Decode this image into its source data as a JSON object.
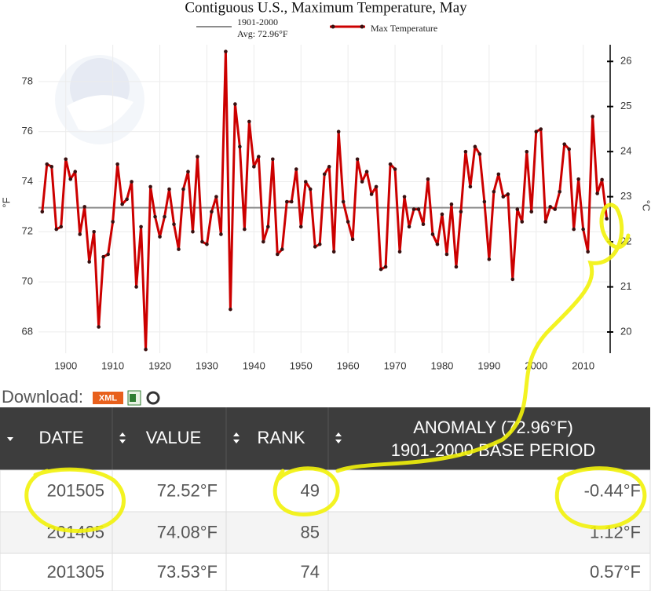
{
  "chart_data": {
    "type": "line",
    "title": "Contiguous U.S., Maximum Temperature, May",
    "ylabel": "°F",
    "y2label": "°C",
    "average": 72.96,
    "average_color": "#8c8c8c",
    "average_label": [
      "1901-2000",
      "Avg: 72.96°F"
    ],
    "x": [
      1895,
      1896,
      1897,
      1898,
      1899,
      1900,
      1901,
      1902,
      1903,
      1904,
      1905,
      1906,
      1907,
      1908,
      1909,
      1910,
      1911,
      1912,
      1913,
      1914,
      1915,
      1916,
      1917,
      1918,
      1919,
      1920,
      1921,
      1922,
      1923,
      1924,
      1925,
      1926,
      1927,
      1928,
      1929,
      1930,
      1931,
      1932,
      1933,
      1934,
      1935,
      1936,
      1937,
      1938,
      1939,
      1940,
      1941,
      1942,
      1943,
      1944,
      1945,
      1946,
      1947,
      1948,
      1949,
      1950,
      1951,
      1952,
      1953,
      1954,
      1955,
      1956,
      1957,
      1958,
      1959,
      1960,
      1961,
      1962,
      1963,
      1964,
      1965,
      1966,
      1967,
      1968,
      1969,
      1970,
      1971,
      1972,
      1973,
      1974,
      1975,
      1976,
      1977,
      1978,
      1979,
      1980,
      1981,
      1982,
      1983,
      1984,
      1985,
      1986,
      1987,
      1988,
      1989,
      1990,
      1991,
      1992,
      1993,
      1994,
      1995,
      1996,
      1997,
      1998,
      1999,
      2000,
      2001,
      2002,
      2003,
      2004,
      2005,
      2006,
      2007,
      2008,
      2009,
      2010,
      2011,
      2012,
      2013,
      2014,
      2015
    ],
    "series": [
      {
        "name": "Max Temperature",
        "color": "#cc0000",
        "values": [
          72.8,
          74.7,
          74.6,
          72.1,
          72.2,
          74.9,
          74.1,
          74.4,
          71.9,
          73.0,
          70.8,
          72.0,
          68.2,
          71.0,
          71.1,
          72.4,
          74.7,
          73.1,
          73.3,
          74.0,
          69.8,
          72.2,
          67.3,
          73.8,
          72.6,
          71.8,
          72.6,
          73.7,
          72.3,
          71.3,
          73.7,
          74.4,
          72.0,
          75.0,
          71.6,
          71.5,
          72.8,
          73.4,
          71.9,
          79.2,
          68.9,
          77.1,
          75.4,
          72.1,
          76.4,
          74.6,
          75.0,
          71.6,
          72.2,
          74.9,
          71.1,
          71.3,
          73.2,
          73.2,
          74.5,
          72.2,
          74.0,
          73.7,
          71.4,
          71.5,
          74.3,
          74.6,
          71.2,
          76.0,
          73.2,
          72.4,
          71.7,
          74.9,
          74.0,
          74.4,
          73.5,
          73.8,
          70.5,
          70.6,
          74.7,
          74.5,
          71.2,
          73.4,
          72.2,
          72.9,
          72.9,
          72.3,
          74.1,
          71.9,
          71.5,
          72.7,
          71.1,
          73.1,
          70.6,
          72.8,
          75.2,
          73.8,
          75.4,
          75.1,
          73.2,
          70.9,
          73.6,
          74.3,
          73.4,
          73.5,
          70.1,
          72.9,
          72.4,
          75.2,
          72.8,
          76.0,
          76.1,
          72.4,
          73.0,
          72.9,
          73.6,
          75.5,
          75.3,
          72.1,
          74.1,
          72.1,
          71.2,
          76.6,
          73.53,
          74.08,
          72.52
        ]
      }
    ],
    "xlim": [
      1894.2,
      2015.4
    ],
    "xticks": [
      1900,
      1910,
      1920,
      1930,
      1940,
      1950,
      1960,
      1970,
      1980,
      1990,
      2000,
      2010
    ],
    "ylim": [
      67.15,
      79.47
    ],
    "yticks": [
      68,
      70,
      72,
      74,
      76,
      78
    ],
    "y2lim": [
      19.53,
      26.37
    ],
    "y2ticks": [
      20,
      21,
      22,
      23,
      24,
      25,
      26
    ],
    "grid": true
  },
  "table": {
    "download_label": "Download:",
    "download_formats": [
      "XML"
    ],
    "columns": [
      "DATE",
      "VALUE",
      "RANK",
      [
        "ANOMALY (72.96°F)",
        "1901-2000 BASE PERIOD"
      ]
    ],
    "rows": [
      [
        "201505",
        "72.52°F",
        "49",
        "-0.44°F"
      ],
      [
        "201405",
        "74.08°F",
        "85",
        "1.12°F"
      ],
      [
        "201305",
        "73.53°F",
        "74",
        "0.57°F"
      ]
    ]
  }
}
